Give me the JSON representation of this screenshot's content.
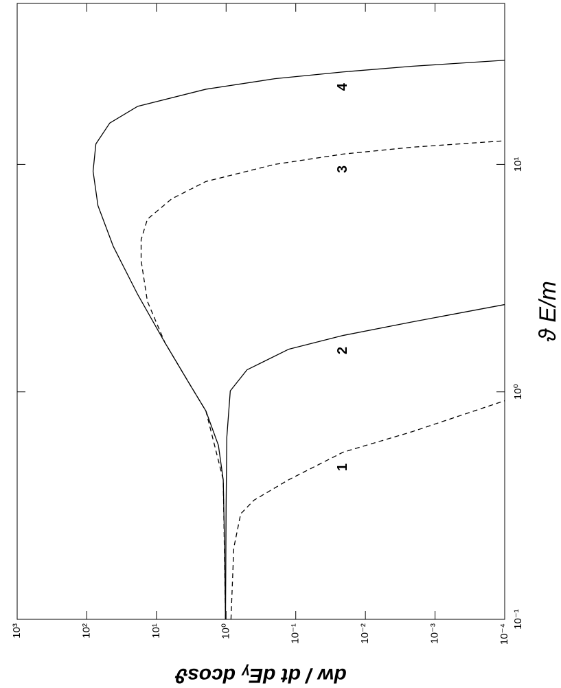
{
  "chart_data": {
    "type": "line",
    "x_label": "ϑ E/m",
    "y_label": "dw / dt dEᵧ dcosϑ",
    "x_scale": "log",
    "y_scale": "log",
    "xlim": [
      0.1,
      51
    ],
    "ylim": [
      0.0001,
      1000
    ],
    "xticks": [
      {
        "value": 0.1,
        "label": "10⁻¹"
      },
      {
        "value": 1,
        "label": "10⁰"
      },
      {
        "value": 10,
        "label": "10¹"
      }
    ],
    "yticks": [
      {
        "value": 0.0001,
        "label": "10⁻⁴"
      },
      {
        "value": 0.001,
        "label": "10⁻³"
      },
      {
        "value": 0.01,
        "label": "10⁻²"
      },
      {
        "value": 0.1,
        "label": "10⁻¹"
      },
      {
        "value": 1,
        "label": "10⁰"
      },
      {
        "value": 10,
        "label": "10¹"
      },
      {
        "value": 100,
        "label": "10²"
      },
      {
        "value": 1000,
        "label": "10³"
      }
    ],
    "series": [
      {
        "name": "1",
        "color": "#000000",
        "dash": "dashed",
        "x": [
          0.1,
          0.206,
          0.291,
          0.334,
          0.411,
          0.543,
          0.668,
          0.914
        ],
        "values": [
          0.851,
          0.776,
          0.617,
          0.398,
          0.126,
          0.0209,
          0.00214,
          0.0001
        ]
      },
      {
        "name": "2",
        "color": "#000000",
        "dash": "solid",
        "x": [
          0.1,
          0.316,
          0.631,
          1.01,
          1.25,
          1.54,
          1.77,
          2.03,
          2.42
        ],
        "values": [
          1.02,
          1.0,
          0.977,
          0.871,
          0.501,
          0.126,
          0.0209,
          0.00214,
          0.0001
        ]
      },
      {
        "name": "3",
        "color": "#000000",
        "dash": "dashed",
        "x": [
          0.1,
          0.411,
          0.824,
          1.09,
          1.65,
          2.5,
          3.78,
          4.67,
          5.74,
          7.06,
          8.41,
          10,
          11.1,
          11.9,
          12.7
        ],
        "values": [
          1.02,
          1.1,
          1.95,
          3.39,
          7.59,
          13.5,
          16.6,
          16.6,
          13.5,
          6.03,
          1.95,
          0.2,
          0.0209,
          0.00214,
          0.0001
        ]
      },
      {
        "name": "4",
        "color": "#000000",
        "dash": "solid",
        "x": [
          0.1,
          0.206,
          0.411,
          0.582,
          0.824,
          1.09,
          1.65,
          2.68,
          4.36,
          6.59,
          9.33,
          12.3,
          15.2,
          18.0,
          21.4,
          23.8,
          25.5,
          27.0,
          28.7
        ],
        "values": [
          1.02,
          1.05,
          1.1,
          1.29,
          1.95,
          3.39,
          7.59,
          18.6,
          41.7,
          69.2,
          81.3,
          74.1,
          46.8,
          18.6,
          1.95,
          0.2,
          0.0209,
          0.00214,
          0.0001
        ]
      }
    ]
  }
}
